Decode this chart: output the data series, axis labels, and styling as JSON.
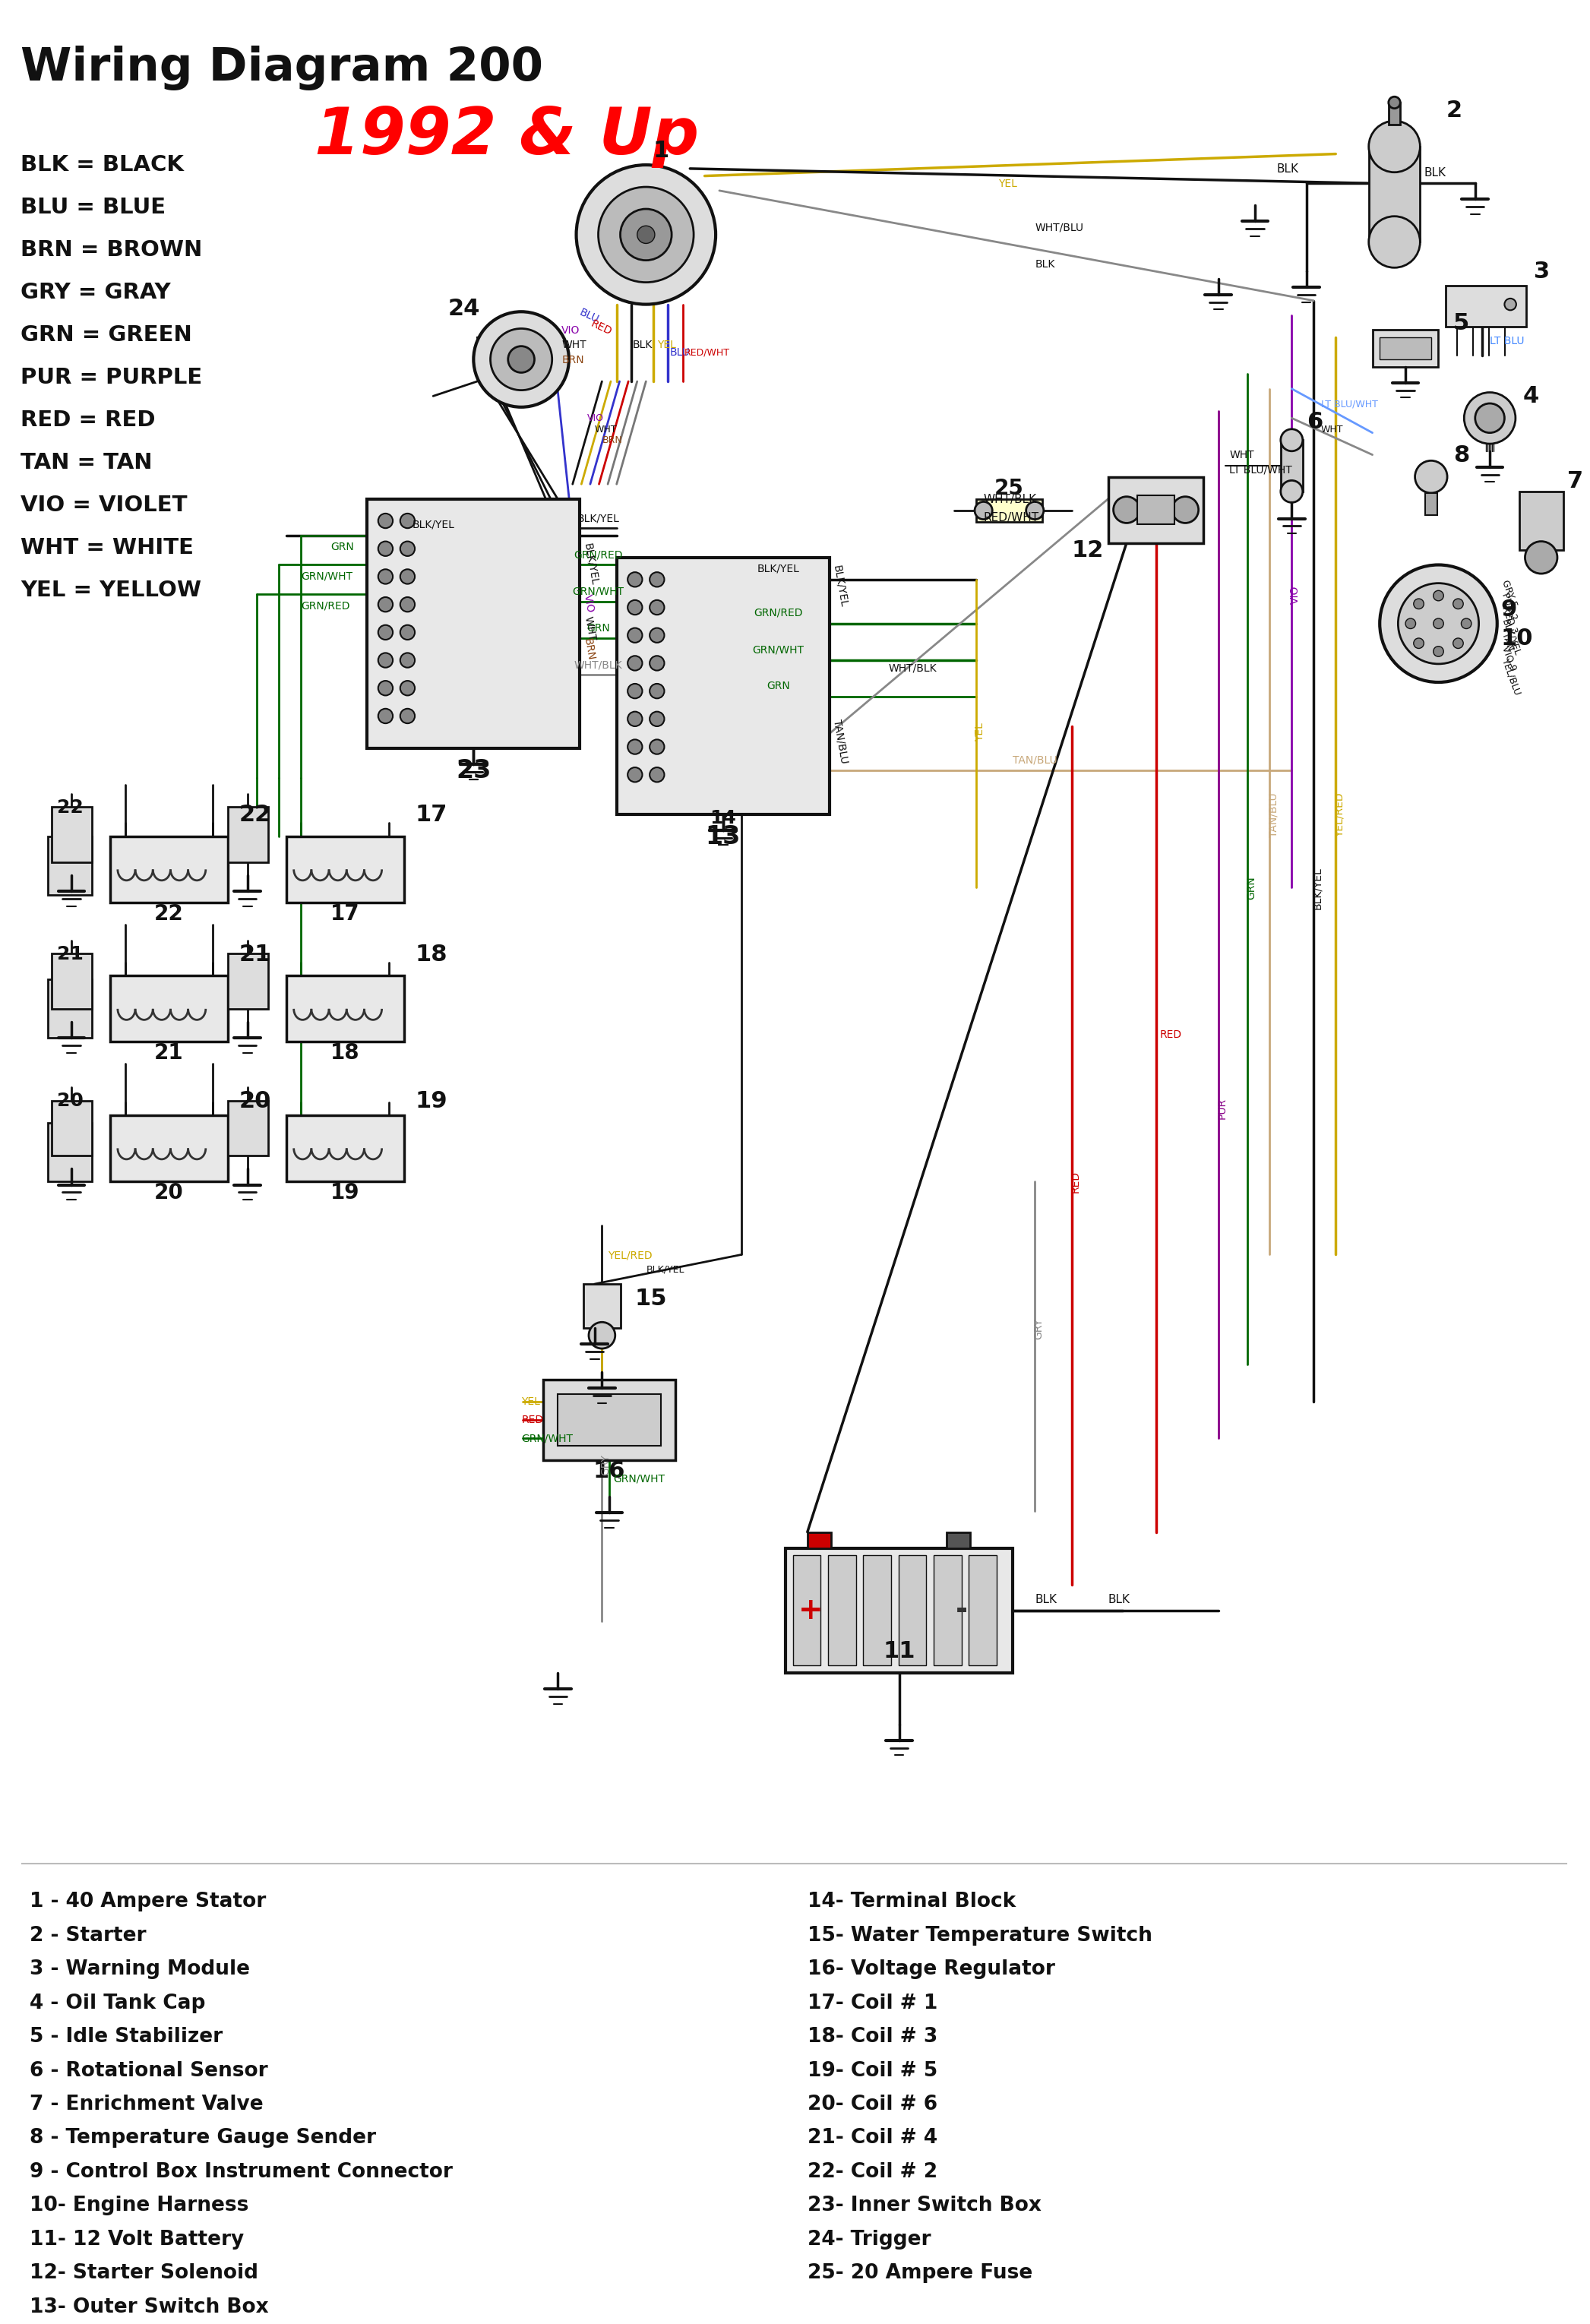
{
  "title": "Wiring Diagram 200",
  "subtitle": "1992 & Up",
  "subtitle_color": "#FF0000",
  "bg_color": "#FFFFFF",
  "title_fontsize": 44,
  "subtitle_fontsize": 62,
  "legend_items": [
    "BLK = BLACK",
    "BLU = BLUE",
    "BRN = BROWN",
    "GRY = GRAY",
    "GRN = GREEN",
    "PUR = PURPLE",
    "RED = RED",
    "TAN = TAN",
    "VIO = VIOLET",
    "WHT = WHITE",
    "YEL = YELLOW"
  ],
  "parts_left": [
    "1 - 40 Ampere Stator",
    "2 - Starter",
    "3 - Warning Module",
    "4 - Oil Tank Cap",
    "5 - Idle Stabilizer",
    "6 - Rotational Sensor",
    "7 - Enrichment Valve",
    "8 - Temperature Gauge Sender",
    "9 - Control Box Instrument Connector",
    "10- Engine Harness",
    "11- 12 Volt Battery",
    "12- Starter Solenoid",
    "13- Outer Switch Box"
  ],
  "parts_right": [
    "14- Terminal Block",
    "15- Water Temperature Switch",
    "16- Voltage Regulator",
    "17- Coil # 1",
    "18- Coil # 3",
    "19- Coil # 5",
    "20- Coil # 6",
    "21- Coil # 4",
    "22- Coil # 2",
    "23- Inner Switch Box",
    "24- Trigger",
    "25- 20 Ampere Fuse"
  ],
  "wire_colors": {
    "BLK": "#111111",
    "BLU": "#3333CC",
    "BRN": "#8B4513",
    "GRY": "#888888",
    "GRN": "#006600",
    "PUR": "#880088",
    "RED": "#CC0000",
    "TAN": "#C8A87A",
    "VIO": "#8800AA",
    "WHT": "#888888",
    "YEL": "#CCAA00"
  }
}
